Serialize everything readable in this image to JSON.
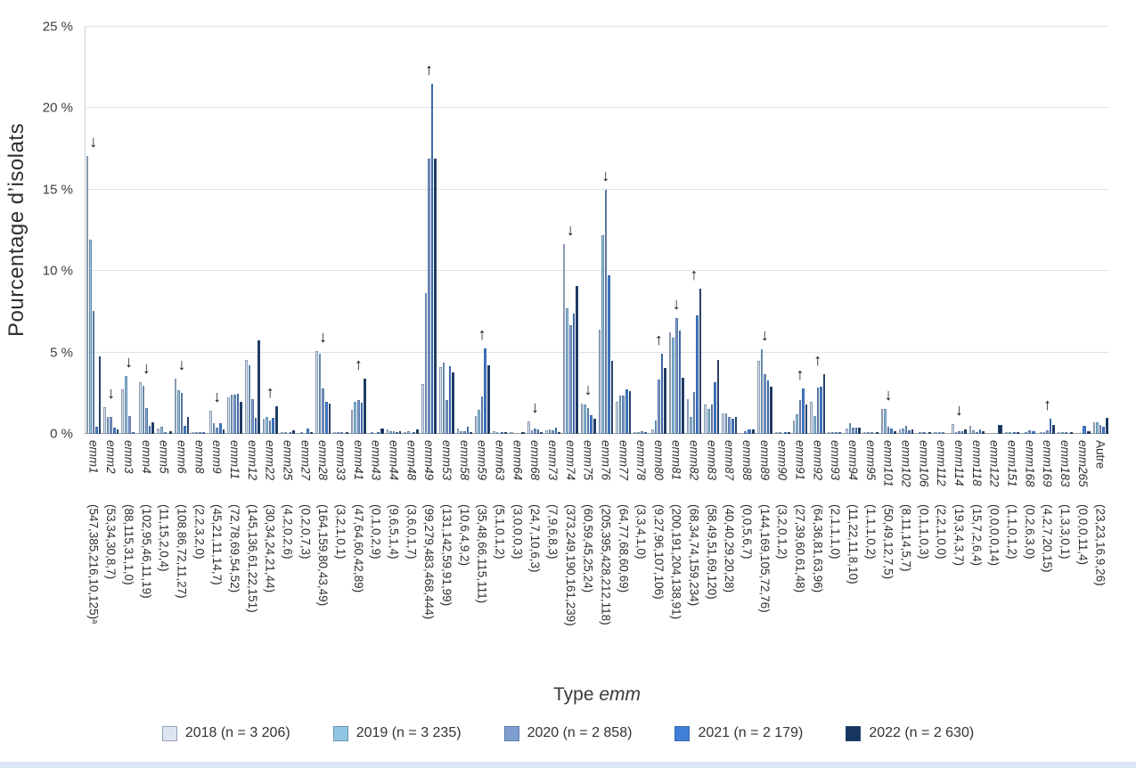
{
  "chart_data": {
    "type": "bar",
    "ylabel": "Pourcentage d’isolats",
    "xlabel": {
      "prefix": "Type ",
      "emphasis": "emm"
    },
    "ylim": [
      0,
      25
    ],
    "yticks": [
      0,
      5,
      10,
      15,
      20,
      25
    ],
    "ytick_suffix": " %",
    "grid": true,
    "legend_position": "bottom",
    "arrow_up_glyph": "↑",
    "arrow_down_glyph": "↓",
    "series": [
      {
        "name": "2018",
        "legend": "2018 (n = 3 206)",
        "n": 3206,
        "color": "#dde6f0"
      },
      {
        "name": "2019",
        "legend": "2019 (n = 3 235)",
        "n": 3235,
        "color": "#93c6e3"
      },
      {
        "name": "2020",
        "legend": "2020 (n = 2 858)",
        "n": 2858,
        "color": "#7e9ed2"
      },
      {
        "name": "2021",
        "legend": "2021 (n = 2 179)",
        "n": 2179,
        "color": "#3f7fd6"
      },
      {
        "name": "2022",
        "legend": "2022 (n = 2 630)",
        "n": 2630,
        "color": "#16355f"
      }
    ],
    "values_unit": "count_of_isolates; bar height = count / n * 100 (%)",
    "categories": [
      {
        "label": "emm1",
        "counts": [
          547,
          385,
          216,
          10,
          125
        ],
        "note": "ᵃ",
        "arrow": "down"
      },
      {
        "label": "emm2",
        "counts": [
          53,
          34,
          30,
          8,
          7
        ],
        "arrow": "down"
      },
      {
        "label": "emm3",
        "counts": [
          88,
          115,
          31,
          1,
          0
        ],
        "arrow": "down"
      },
      {
        "label": "emm4",
        "counts": [
          102,
          95,
          46,
          11,
          19
        ],
        "arrow": "down"
      },
      {
        "label": "emm5",
        "counts": [
          11,
          15,
          2,
          0,
          4
        ]
      },
      {
        "label": "emm6",
        "counts": [
          108,
          86,
          72,
          11,
          27
        ],
        "arrow": "down"
      },
      {
        "label": "emm8",
        "counts": [
          2,
          2,
          3,
          2,
          0
        ]
      },
      {
        "label": "emm9",
        "counts": [
          45,
          21,
          11,
          14,
          7
        ],
        "arrow": "down"
      },
      {
        "label": "emm11",
        "counts": [
          72,
          78,
          69,
          54,
          52
        ]
      },
      {
        "label": "emm12",
        "counts": [
          145,
          136,
          61,
          22,
          151
        ]
      },
      {
        "label": "emm22",
        "counts": [
          30,
          34,
          24,
          21,
          44
        ],
        "arrow": "up"
      },
      {
        "label": "emm25",
        "counts": [
          4,
          2,
          0,
          2,
          6
        ]
      },
      {
        "label": "emm27",
        "counts": [
          0,
          2,
          0,
          7,
          3
        ]
      },
      {
        "label": "emm28",
        "counts": [
          164,
          159,
          80,
          43,
          49
        ],
        "arrow": "down"
      },
      {
        "label": "emm33",
        "counts": [
          3,
          2,
          1,
          0,
          1
        ]
      },
      {
        "label": "emm41",
        "counts": [
          47,
          64,
          60,
          42,
          89
        ],
        "arrow": "up"
      },
      {
        "label": "emm43",
        "counts": [
          0,
          1,
          0,
          2,
          9
        ]
      },
      {
        "label": "emm44",
        "counts": [
          9,
          6,
          5,
          1,
          4
        ]
      },
      {
        "label": "emm48",
        "counts": [
          3,
          6,
          0,
          1,
          7
        ]
      },
      {
        "label": "emm49",
        "counts": [
          99,
          279,
          483,
          468,
          444
        ],
        "arrow": "up"
      },
      {
        "label": "emm53",
        "counts": [
          131,
          142,
          59,
          91,
          99
        ]
      },
      {
        "label": "emm58",
        "counts": [
          10,
          6,
          4,
          9,
          2
        ]
      },
      {
        "label": "emm59",
        "counts": [
          35,
          48,
          66,
          115,
          111
        ],
        "arrow": "up"
      },
      {
        "label": "emm63",
        "counts": [
          5,
          1,
          0,
          1,
          2
        ]
      },
      {
        "label": "emm64",
        "counts": [
          3,
          0,
          0,
          0,
          3
        ]
      },
      {
        "label": "emm68",
        "counts": [
          24,
          7,
          10,
          6,
          3
        ],
        "arrow": "down"
      },
      {
        "label": "emm73",
        "counts": [
          7,
          9,
          6,
          8,
          3
        ]
      },
      {
        "label": "emm74",
        "counts": [
          373,
          249,
          190,
          161,
          239
        ],
        "arrow": "down"
      },
      {
        "label": "emm75",
        "counts": [
          60,
          59,
          45,
          25,
          24
        ],
        "arrow": "down"
      },
      {
        "label": "emm76",
        "counts": [
          205,
          395,
          428,
          212,
          118
        ],
        "arrow": "down"
      },
      {
        "label": "emm77",
        "counts": [
          64,
          77,
          68,
          60,
          69
        ]
      },
      {
        "label": "emm78",
        "counts": [
          3,
          3,
          4,
          1,
          0
        ]
      },
      {
        "label": "emm80",
        "counts": [
          9,
          27,
          96,
          107,
          106
        ],
        "arrow": "up"
      },
      {
        "label": "emm81",
        "counts": [
          200,
          191,
          204,
          138,
          91
        ],
        "arrow": "down"
      },
      {
        "label": "emm82",
        "counts": [
          68,
          34,
          74,
          159,
          234
        ],
        "arrow": "up"
      },
      {
        "label": "emm83",
        "counts": [
          58,
          49,
          51,
          69,
          120
        ]
      },
      {
        "label": "emm87",
        "counts": [
          40,
          40,
          29,
          20,
          28
        ]
      },
      {
        "label": "emm88",
        "counts": [
          0,
          0,
          5,
          6,
          7
        ]
      },
      {
        "label": "emm89",
        "counts": [
          144,
          169,
          105,
          72,
          76
        ],
        "arrow": "down"
      },
      {
        "label": "emm90",
        "counts": [
          3,
          2,
          0,
          1,
          2
        ]
      },
      {
        "label": "emm91",
        "counts": [
          27,
          39,
          60,
          61,
          48
        ],
        "arrow": "up"
      },
      {
        "label": "emm92",
        "counts": [
          64,
          36,
          81,
          63,
          96
        ],
        "arrow": "up"
      },
      {
        "label": "emm93",
        "counts": [
          2,
          1,
          1,
          1,
          0
        ]
      },
      {
        "label": "emm94",
        "counts": [
          11,
          22,
          11,
          8,
          10
        ]
      },
      {
        "label": "emm95",
        "counts": [
          1,
          1,
          1,
          0,
          2
        ]
      },
      {
        "label": "emm101",
        "counts": [
          50,
          49,
          12,
          7,
          5
        ],
        "arrow": "down"
      },
      {
        "label": "emm102",
        "counts": [
          8,
          11,
          14,
          5,
          7
        ]
      },
      {
        "label": "emm106",
        "counts": [
          0,
          1,
          1,
          0,
          3
        ]
      },
      {
        "label": "emm112",
        "counts": [
          2,
          2,
          1,
          0,
          0
        ]
      },
      {
        "label": "emm114",
        "counts": [
          19,
          3,
          4,
          3,
          7
        ],
        "arrow": "down"
      },
      {
        "label": "emm118",
        "counts": [
          15,
          7,
          2,
          6,
          4
        ]
      },
      {
        "label": "emm122",
        "counts": [
          0,
          0,
          0,
          0,
          14
        ]
      },
      {
        "label": "emm151",
        "counts": [
          1,
          1,
          0,
          1,
          2
        ]
      },
      {
        "label": "emm168",
        "counts": [
          0,
          2,
          6,
          3,
          0
        ]
      },
      {
        "label": "emm169",
        "counts": [
          4,
          2,
          7,
          20,
          15
        ],
        "arrow": "up"
      },
      {
        "label": "emm183",
        "counts": [
          1,
          3,
          3,
          0,
          1
        ]
      },
      {
        "label": "emm265",
        "counts": [
          0,
          0,
          0,
          11,
          4
        ]
      },
      {
        "label": "Autre",
        "counts": [
          23,
          23,
          16,
          9,
          26
        ]
      }
    ]
  }
}
